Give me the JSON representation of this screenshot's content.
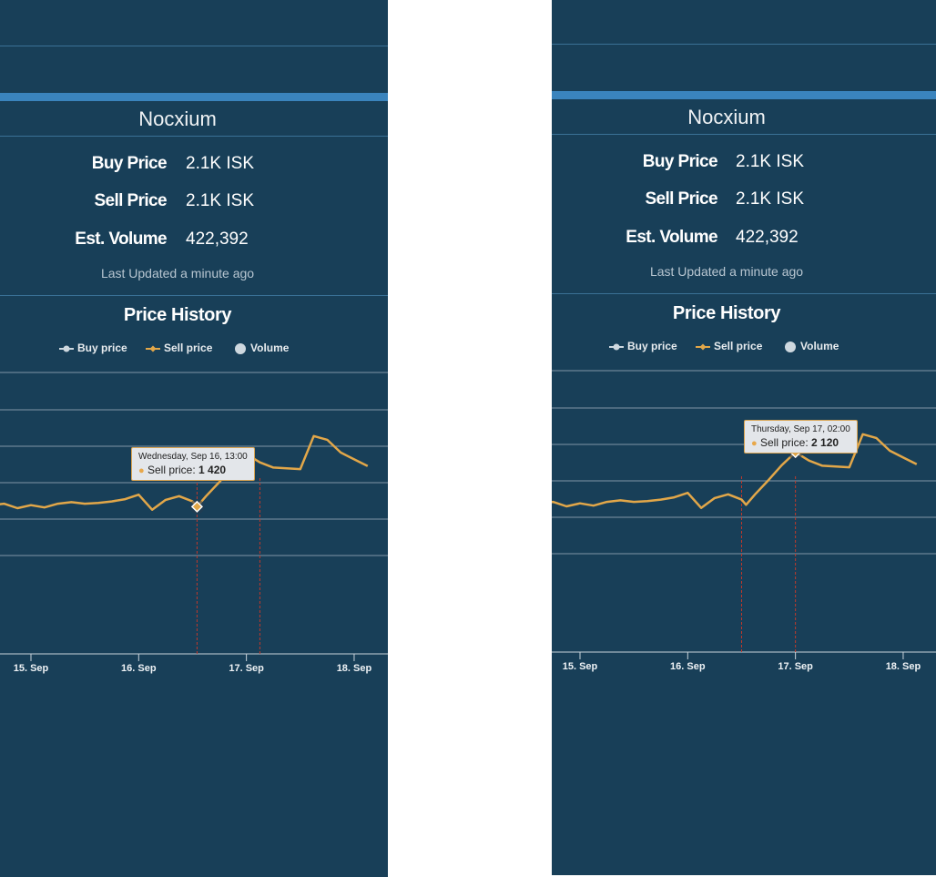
{
  "item": {
    "name": "Nocxium",
    "buy_label": "Buy Price",
    "buy_value": "2.1K ISK",
    "sell_label": "Sell Price",
    "sell_value": "2.1K ISK",
    "volume_label": "Est. Volume",
    "volume_value": "422,392",
    "last_updated": "Last Updated a minute ago"
  },
  "history": {
    "title": "Price History",
    "legend": {
      "buy": "Buy price",
      "sell": "Sell price",
      "volume": "Volume"
    }
  },
  "colors": {
    "background": "#183f58",
    "accent": "#3a84bd",
    "sell_line": "#e2a749",
    "marker_line": "#c0392b"
  },
  "tooltips": {
    "left": {
      "date": "Wednesday, Sep 16, 13:00",
      "label": "Sell price:",
      "value": "1 420"
    },
    "right": {
      "date": "Thursday, Sep 17, 02:00",
      "label": "Sell price:",
      "value": "2 120"
    }
  },
  "chart_data": {
    "type": "line",
    "title": "Price History",
    "xlabel": "",
    "ylabel": "",
    "x_unit": "hours from 15 Sep 00:00",
    "x_ticks": [
      {
        "label": "15. Sep",
        "x": 0
      },
      {
        "label": "16. Sep",
        "x": 24
      },
      {
        "label": "17. Sep",
        "x": 48
      },
      {
        "label": "18. Sep",
        "x": 72
      }
    ],
    "series": [
      {
        "name": "Sell price",
        "x": [
          -9,
          -6,
          -3,
          0,
          3,
          6,
          9,
          12,
          15,
          18,
          21,
          24,
          27,
          30,
          33,
          36,
          37,
          39,
          42,
          45,
          48,
          51,
          54,
          57,
          60,
          63,
          66,
          69,
          72,
          75
        ],
        "values": [
          1440,
          1460,
          1400,
          1440,
          1410,
          1460,
          1480,
          1460,
          1470,
          1490,
          1520,
          1580,
          1380,
          1510,
          1560,
          1490,
          1420,
          1560,
          1750,
          1950,
          2120,
          2010,
          1940,
          1930,
          1920,
          2360,
          2310,
          2140,
          2050,
          1960
        ]
      }
    ]
  }
}
